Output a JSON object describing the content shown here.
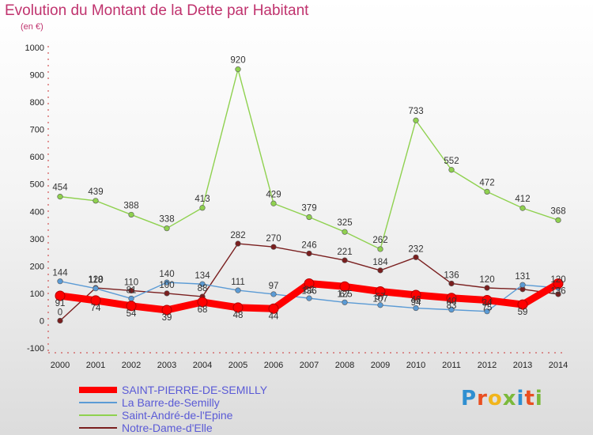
{
  "title": "Evolution du Montant de la Dette par Habitant",
  "subtitle": "(en €)",
  "logo": {
    "text": "Proxiti",
    "letter_colors": [
      "#2f8fd1",
      "#e94f21",
      "#f1b51c",
      "#7bb93b",
      "#2f8fd1",
      "#e94f21",
      "#7bb93b"
    ]
  },
  "chart_data": {
    "type": "line",
    "x": [
      "2000",
      "2001",
      "2002",
      "2003",
      "2004",
      "2005",
      "2006",
      "2007",
      "2008",
      "2009",
      "2010",
      "2011",
      "2012",
      "2013",
      "2014"
    ],
    "yticks": [
      -100,
      0,
      100,
      200,
      300,
      400,
      500,
      600,
      700,
      800,
      900,
      1000
    ],
    "ylim": [
      -100,
      1000
    ],
    "grid": false,
    "legend_position": "bottom-left",
    "series": [
      {
        "name": "SAINT-PIERRE-DE-SEMILLY",
        "color": "#ff0000",
        "values": [
          91,
          74,
          54,
          39,
          68,
          48,
          44,
          136,
          125,
          107,
          94,
          83,
          75,
          59,
          136
        ]
      },
      {
        "name": "La Barre-de-Semilly",
        "color": "#5b9bd5",
        "values": [
          144,
          118,
          81,
          140,
          134,
          111,
          97,
          82,
          67,
          57,
          46,
          40,
          34,
          131,
          120
        ]
      },
      {
        "name": "Saint-André-de-l'Epine",
        "color": "#8fd14f",
        "values": [
          454,
          439,
          388,
          338,
          413,
          920,
          429,
          379,
          325,
          262,
          733,
          552,
          472,
          412,
          368
        ]
      },
      {
        "name": "Notre-Dame-d'Elle",
        "color": "#7a1f1f",
        "values": [
          0,
          120,
          110,
          100,
          88,
          282,
          270,
          246,
          221,
          184,
          232,
          136,
          120,
          115,
          97
        ]
      }
    ],
    "data_labels": {
      "SAINT-PIERRE-DE-SEMILLY": [
        "91",
        "74",
        "54",
        "39",
        "68",
        "48",
        "44",
        "136",
        "125",
        "107",
        "94",
        "83",
        "75",
        "59",
        "136"
      ],
      "La Barre-de-Semilly": [
        "144",
        "118",
        "81",
        "140",
        "134",
        "111",
        "97",
        "82",
        "67",
        "57",
        "46",
        "40",
        "34",
        "131",
        "120"
      ],
      "Saint-André-de-l'Epine": [
        "454",
        "439",
        "388",
        "338",
        "413",
        "920",
        "429",
        "379",
        "325",
        "262",
        "733",
        "552",
        "472",
        "412",
        "368"
      ],
      "Notre-Dame-d'Elle": [
        "0",
        "120",
        "110",
        "100",
        "88",
        "282",
        "270",
        "246",
        "221",
        "184",
        "232",
        "136",
        "120",
        "",
        ""
      ]
    }
  }
}
